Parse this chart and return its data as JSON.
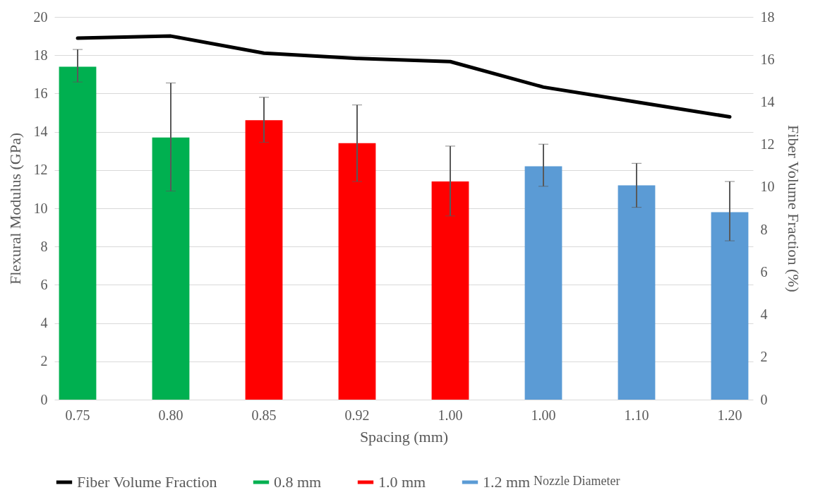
{
  "chart_data": {
    "type": "bar",
    "xlabel": "Spacing (mm)",
    "ylabel": "Flexural Modulus (GPa)",
    "y2label": "Fiber Volume Fraction (%)",
    "legend_title": "Nozzle Diameter",
    "categories": [
      "0.75",
      "0.80",
      "0.85",
      "0.92",
      "1.00",
      "1.00",
      "1.10",
      "1.20"
    ],
    "series": [
      {
        "name": "Fiber Volume Fraction",
        "type": "line",
        "axis": "y2",
        "color": "#000000",
        "values": [
          17.0,
          17.1,
          16.3,
          16.05,
          15.9,
          14.7,
          14.0,
          13.3
        ]
      },
      {
        "name": "0.8 mm",
        "color": "#00b050",
        "values": [
          17.4,
          13.7,
          null,
          null,
          null,
          null,
          null,
          null
        ],
        "errors": [
          [
            16.6,
            18.3
          ],
          [
            10.9,
            16.55
          ],
          null,
          null,
          null,
          null,
          null,
          null
        ]
      },
      {
        "name": "1.0 mm",
        "color": "#ff0000",
        "values": [
          null,
          null,
          14.6,
          13.4,
          11.4,
          null,
          null,
          null
        ],
        "errors": [
          null,
          null,
          [
            13.45,
            15.8
          ],
          [
            11.4,
            15.4
          ],
          [
            9.6,
            13.25
          ],
          null,
          null,
          null
        ]
      },
      {
        "name": "1.2 mm",
        "color": "#5b9bd5",
        "values": [
          null,
          null,
          null,
          null,
          null,
          12.2,
          11.2,
          9.8
        ],
        "errors": [
          null,
          null,
          null,
          null,
          null,
          [
            11.15,
            13.35
          ],
          [
            10.05,
            12.35
          ],
          [
            8.3,
            11.4
          ]
        ]
      }
    ],
    "ylim": [
      0,
      20
    ],
    "yticks": [
      0,
      2,
      4,
      6,
      8,
      10,
      12,
      14,
      16,
      18,
      20
    ],
    "y2lim": [
      0,
      18
    ],
    "y2ticks": [
      0,
      2,
      4,
      6,
      8,
      10,
      12,
      14,
      16,
      18
    ],
    "grid": "y",
    "legend": "bottom",
    "marker": "none",
    "line_style": "solid"
  }
}
